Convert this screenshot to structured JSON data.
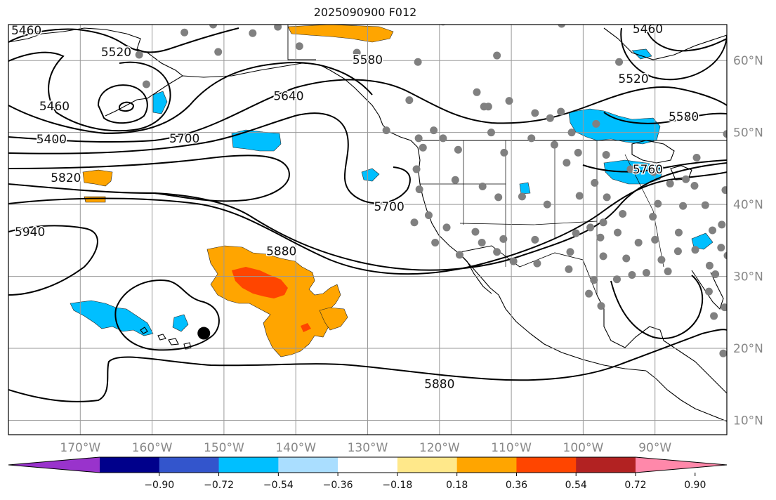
{
  "title": "2025090900 F012",
  "map": {
    "projection": "PlateCarree",
    "lon_range": [
      -180,
      -80
    ],
    "lat_range": [
      8,
      65
    ],
    "lon_ticks": [
      {
        "lon": -170,
        "label": "170°W"
      },
      {
        "lon": -160,
        "label": "160°W"
      },
      {
        "lon": -150,
        "label": "150°W"
      },
      {
        "lon": -140,
        "label": "140°W"
      },
      {
        "lon": -130,
        "label": "130°W"
      },
      {
        "lon": -120,
        "label": "120°W"
      },
      {
        "lon": -110,
        "label": "110°W"
      },
      {
        "lon": -100,
        "label": "100°W"
      },
      {
        "lon": -90,
        "label": "90°W"
      }
    ],
    "lat_ticks": [
      {
        "lat": 60,
        "label": "60°N"
      },
      {
        "lat": 50,
        "label": "50°N"
      },
      {
        "lat": 40,
        "label": "40°N"
      },
      {
        "lat": 30,
        "label": "30°N"
      },
      {
        "lat": 20,
        "label": "20°N"
      },
      {
        "lat": 10,
        "label": "10°N"
      }
    ],
    "contour_labels": [
      {
        "text": "5460",
        "lon": -177.5,
        "lat": 64.2
      },
      {
        "text": "5460",
        "lon": -173.6,
        "lat": 53.7
      },
      {
        "text": "5400",
        "lon": -174,
        "lat": 49.1
      },
      {
        "text": "5520",
        "lon": -165,
        "lat": 61.2
      },
      {
        "text": "5580",
        "lon": -130,
        "lat": 60.1
      },
      {
        "text": "5640",
        "lon": -141,
        "lat": 55.1
      },
      {
        "text": "5700",
        "lon": -155.5,
        "lat": 49.2
      },
      {
        "text": "5820",
        "lon": -172,
        "lat": 43.7
      },
      {
        "text": "5940",
        "lon": -177,
        "lat": 36.2
      },
      {
        "text": "5880",
        "lon": -142,
        "lat": 33.5
      },
      {
        "text": "5700",
        "lon": -127,
        "lat": 39.7
      },
      {
        "text": "5880",
        "lon": -120,
        "lat": 15.1
      },
      {
        "text": "5460",
        "lon": -91,
        "lat": 64.4
      },
      {
        "text": "5520",
        "lon": -93,
        "lat": 57.5
      },
      {
        "text": "5580",
        "lon": -86,
        "lat": 52.2
      },
      {
        "text": "5760",
        "lon": -91,
        "lat": 44.9
      }
    ],
    "storm_center": {
      "lon": -152.8,
      "lat": 22.1,
      "color": "#000000"
    },
    "station_color": "#808080",
    "contour_color": "#000000",
    "grid_color": "#999999"
  },
  "colorbar": {
    "colors": [
      "#9933cc",
      "#00008b",
      "#3355cc",
      "#00bfff",
      "#aadeff",
      "#ffffff",
      "#ffe88a",
      "#ffa500",
      "#ff4500",
      "#b22222",
      "#ff88aa"
    ],
    "ticks": [
      "−0.90",
      "−0.72",
      "−0.54",
      "−0.36",
      "−0.18",
      "0.18",
      "0.36",
      "0.54",
      "0.72",
      "0.90"
    ]
  }
}
